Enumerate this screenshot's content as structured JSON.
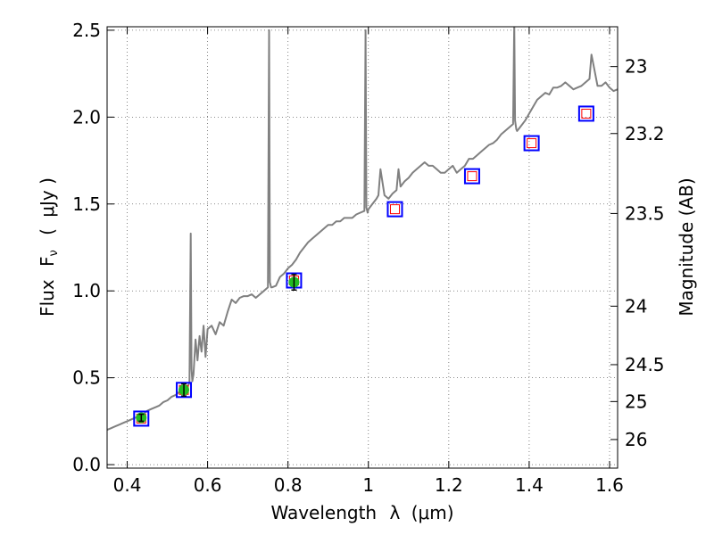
{
  "chart_data": {
    "type": "line",
    "xlabel": {
      "text": "Wavelength",
      "symbol": "λ",
      "unit_open": "(",
      "unit_mu": "μ",
      "unit_rest": "m)"
    },
    "ylabel": {
      "text": "Flux",
      "symbol": "F",
      "subscript": "ν",
      "unit_open": "(",
      "unit_mu": "μ",
      "unit_rest": "Jy )"
    },
    "y2label": "Magnitude (AB)",
    "xlim": [
      0.35,
      1.62
    ],
    "ylim": [
      -0.02,
      2.52
    ],
    "x_ticks": [
      0.4,
      0.6,
      0.8,
      1.0,
      1.2,
      1.4,
      1.6
    ],
    "x_tick_labels": [
      "0.4",
      "0.6",
      "0.8",
      "1",
      "1.2",
      "1.4",
      "1.6"
    ],
    "y_ticks": [
      0.0,
      0.5,
      1.0,
      1.5,
      2.0,
      2.5
    ],
    "y_tick_labels": [
      "0.0",
      "0.5",
      "1.0",
      "1.5",
      "2.0",
      "2.5"
    ],
    "y2_ticks": [
      23,
      23.2,
      23.5,
      24,
      24.5,
      25,
      26
    ],
    "y2_tick_labels": [
      "23",
      "23.2",
      "23.5",
      "24",
      "24.5",
      "25",
      "26"
    ],
    "grid": true,
    "colors": {
      "spectrum": "#808080",
      "measured_fill": "#22bb22",
      "model_box": "#0000ff",
      "model_inner": "#ff0000",
      "grid": "#666666"
    },
    "series": [
      {
        "kind": "spectrum",
        "x": [
          0.35,
          0.36,
          0.37,
          0.38,
          0.39,
          0.4,
          0.41,
          0.42,
          0.43,
          0.44,
          0.45,
          0.46,
          0.47,
          0.48,
          0.49,
          0.5,
          0.51,
          0.52,
          0.53,
          0.54,
          0.55,
          0.555,
          0.558,
          0.56,
          0.562,
          0.565,
          0.57,
          0.575,
          0.58,
          0.585,
          0.59,
          0.595,
          0.6,
          0.61,
          0.62,
          0.63,
          0.64,
          0.65,
          0.66,
          0.67,
          0.68,
          0.69,
          0.7,
          0.71,
          0.72,
          0.73,
          0.74,
          0.75,
          0.753,
          0.755,
          0.758,
          0.76,
          0.77,
          0.78,
          0.79,
          0.8,
          0.81,
          0.82,
          0.83,
          0.84,
          0.85,
          0.86,
          0.87,
          0.88,
          0.89,
          0.9,
          0.91,
          0.92,
          0.93,
          0.94,
          0.95,
          0.96,
          0.97,
          0.98,
          0.99,
          0.993,
          0.995,
          0.998,
          1.0,
          1.01,
          1.02,
          1.025,
          1.03,
          1.04,
          1.05,
          1.06,
          1.07,
          1.075,
          1.08,
          1.09,
          1.1,
          1.11,
          1.12,
          1.13,
          1.14,
          1.15,
          1.16,
          1.17,
          1.18,
          1.19,
          1.2,
          1.21,
          1.22,
          1.23,
          1.24,
          1.25,
          1.26,
          1.27,
          1.28,
          1.29,
          1.3,
          1.31,
          1.32,
          1.33,
          1.34,
          1.35,
          1.36,
          1.363,
          1.365,
          1.368,
          1.37,
          1.38,
          1.39,
          1.4,
          1.41,
          1.42,
          1.43,
          1.44,
          1.45,
          1.46,
          1.47,
          1.48,
          1.49,
          1.5,
          1.51,
          1.52,
          1.53,
          1.54,
          1.55,
          1.555,
          1.56,
          1.57,
          1.58,
          1.59,
          1.6,
          1.61,
          1.62
        ],
        "y": [
          0.2,
          0.21,
          0.22,
          0.23,
          0.24,
          0.25,
          0.26,
          0.27,
          0.28,
          0.29,
          0.31,
          0.32,
          0.33,
          0.34,
          0.36,
          0.37,
          0.39,
          0.4,
          0.42,
          0.44,
          0.45,
          0.47,
          1.33,
          0.55,
          0.48,
          0.52,
          0.72,
          0.6,
          0.74,
          0.65,
          0.8,
          0.62,
          0.78,
          0.8,
          0.75,
          0.82,
          0.8,
          0.88,
          0.95,
          0.93,
          0.96,
          0.97,
          0.97,
          0.98,
          0.96,
          0.98,
          1.0,
          1.02,
          2.5,
          1.05,
          1.02,
          1.02,
          1.03,
          1.08,
          1.1,
          1.13,
          1.15,
          1.18,
          1.22,
          1.25,
          1.28,
          1.3,
          1.32,
          1.34,
          1.36,
          1.38,
          1.38,
          1.4,
          1.4,
          1.42,
          1.42,
          1.42,
          1.44,
          1.45,
          1.46,
          2.5,
          1.48,
          1.45,
          1.47,
          1.5,
          1.53,
          1.55,
          1.7,
          1.55,
          1.53,
          1.56,
          1.58,
          1.7,
          1.6,
          1.63,
          1.65,
          1.68,
          1.7,
          1.72,
          1.74,
          1.72,
          1.72,
          1.7,
          1.68,
          1.68,
          1.7,
          1.72,
          1.68,
          1.7,
          1.72,
          1.76,
          1.76,
          1.78,
          1.8,
          1.82,
          1.84,
          1.85,
          1.87,
          1.9,
          1.92,
          1.94,
          1.96,
          2.55,
          1.98,
          1.93,
          1.92,
          1.95,
          1.98,
          2.02,
          2.06,
          2.1,
          2.12,
          2.14,
          2.13,
          2.17,
          2.17,
          2.18,
          2.2,
          2.18,
          2.16,
          2.17,
          2.18,
          2.2,
          2.22,
          2.36,
          2.3,
          2.18,
          2.18,
          2.2,
          2.17,
          2.15,
          2.16
        ]
      },
      {
        "kind": "measured",
        "x": [
          0.435,
          0.541,
          0.815
        ],
        "y": [
          0.27,
          0.43,
          1.05
        ],
        "yerr": [
          0.02,
          0.035,
          0.045
        ]
      },
      {
        "kind": "model",
        "x": [
          0.435,
          0.541,
          0.815,
          1.066,
          1.258,
          1.406,
          1.542
        ],
        "y": [
          0.265,
          0.43,
          1.06,
          1.47,
          1.66,
          1.85,
          2.02
        ]
      }
    ]
  }
}
